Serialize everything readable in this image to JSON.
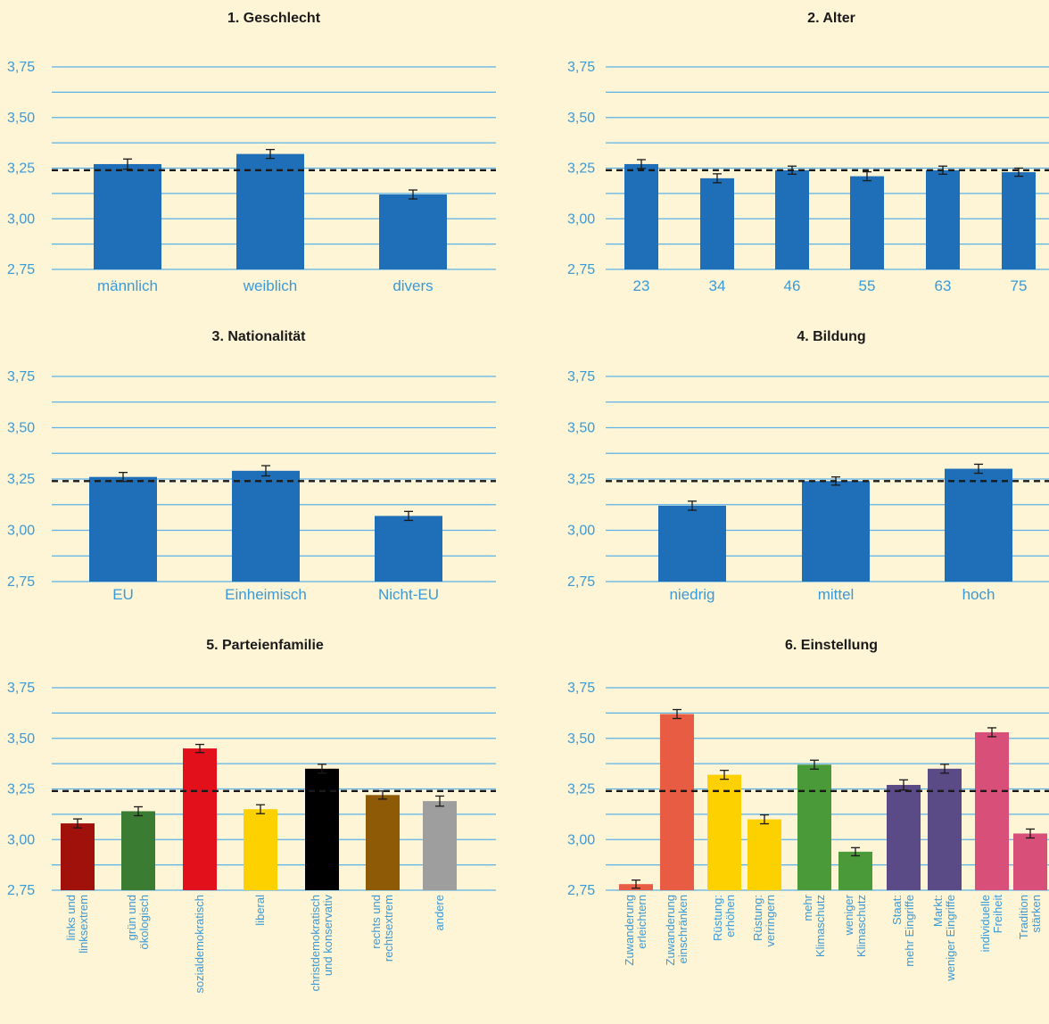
{
  "colors": {
    "grid": "#5bb2e8",
    "axis_text": "#3a9ad9",
    "reference_line": "#1a1a1a",
    "error_bar": "#1a1a1a"
  },
  "chart_data": [
    {
      "type": "bar",
      "title": "1. Geschlecht",
      "ylim": [
        2.75,
        3.75
      ],
      "yticks": [
        "3,75",
        "3,50",
        "3,25",
        "3,00",
        "2,75"
      ],
      "reference": 3.24,
      "categories": [
        "männlich",
        "weiblich",
        "divers"
      ],
      "values": [
        3.27,
        3.32,
        3.12
      ],
      "errors": [
        0.025,
        0.022,
        0.022
      ],
      "colors": [
        "#1f6fb8",
        "#1f6fb8",
        "#1f6fb8"
      ]
    },
    {
      "type": "bar",
      "title": "2. Alter",
      "ylim": [
        2.75,
        3.75
      ],
      "yticks": [
        "3,75",
        "3,50",
        "3,25",
        "3,00",
        "2,75"
      ],
      "reference": 3.24,
      "categories": [
        "23",
        "34",
        "46",
        "55",
        "63",
        "75"
      ],
      "values": [
        3.27,
        3.2,
        3.24,
        3.21,
        3.24,
        3.23
      ],
      "errors": [
        0.022,
        0.022,
        0.02,
        0.022,
        0.02,
        0.02
      ],
      "colors": [
        "#1f6fb8",
        "#1f6fb8",
        "#1f6fb8",
        "#1f6fb8",
        "#1f6fb8",
        "#1f6fb8"
      ]
    },
    {
      "type": "bar",
      "title": "3. Nationalität",
      "ylim": [
        2.75,
        3.75
      ],
      "yticks": [
        "3,75",
        "3,50",
        "3,25",
        "3,00",
        "2,75"
      ],
      "reference": 3.24,
      "categories": [
        "EU",
        "Einheimisch",
        "Nicht-EU"
      ],
      "values": [
        3.26,
        3.29,
        3.07
      ],
      "errors": [
        0.022,
        0.025,
        0.022
      ],
      "colors": [
        "#1f6fb8",
        "#1f6fb8",
        "#1f6fb8"
      ]
    },
    {
      "type": "bar",
      "title": "4. Bildung",
      "ylim": [
        2.75,
        3.75
      ],
      "yticks": [
        "3,75",
        "3,50",
        "3,25",
        "3,00",
        "2,75"
      ],
      "reference": 3.24,
      "categories": [
        "niedrig",
        "mittel",
        "hoch"
      ],
      "values": [
        3.12,
        3.24,
        3.3
      ],
      "errors": [
        0.022,
        0.02,
        0.022
      ],
      "colors": [
        "#1f6fb8",
        "#1f6fb8",
        "#1f6fb8"
      ]
    },
    {
      "type": "bar",
      "title": "5. Parteienfamilie",
      "ylim": [
        2.75,
        3.75
      ],
      "yticks": [
        "3,75",
        "3,50",
        "3,25",
        "3,00",
        "2,75"
      ],
      "reference": 3.24,
      "categories": [
        "links und\nlinksextrem",
        "grün und\nökologisch",
        "sozialdemokratisch",
        "liberal",
        "christdemokratisch\nund konservativ",
        "rechts und\nrechtsextrem",
        "andere"
      ],
      "values": [
        3.08,
        3.14,
        3.45,
        3.15,
        3.35,
        3.22,
        3.19
      ],
      "errors": [
        0.022,
        0.022,
        0.02,
        0.022,
        0.022,
        0.02,
        0.025
      ],
      "colors": [
        "#a0110c",
        "#3a7d32",
        "#e1101a",
        "#fdd000",
        "#000000",
        "#8e5a06",
        "#9e9e9e"
      ]
    },
    {
      "type": "bar",
      "title": "6. Einstellung",
      "ylim": [
        2.75,
        3.75
      ],
      "yticks": [
        "3,75",
        "3,50",
        "3,25",
        "3,00",
        "2,75"
      ],
      "reference": 3.24,
      "categories": [
        "Zuwanderung\nerleichtern",
        "Zuwanderung\neinschränken",
        "Rüstung:\nerhöhen",
        "Rüstung:\nverringern",
        "mehr\nKlimaschutz",
        "weniger\nKlimaschutz",
        "Staat:\nmehr Eingriffe",
        "Markt:\nweniger Eingriffe",
        "individuelle\nFreiheit",
        "Tradition\nstärken"
      ],
      "values": [
        2.78,
        3.62,
        3.32,
        3.1,
        3.37,
        2.94,
        3.27,
        3.35,
        3.53,
        3.03
      ],
      "errors": [
        0.02,
        0.022,
        0.022,
        0.022,
        0.022,
        0.02,
        0.025,
        0.022,
        0.022,
        0.022
      ],
      "colors": [
        "#e85c43",
        "#e85c43",
        "#fdd000",
        "#fdd000",
        "#4a9a3a",
        "#4a9a3a",
        "#5a4a85",
        "#5a4a85",
        "#d8507a",
        "#d8507a"
      ]
    }
  ]
}
